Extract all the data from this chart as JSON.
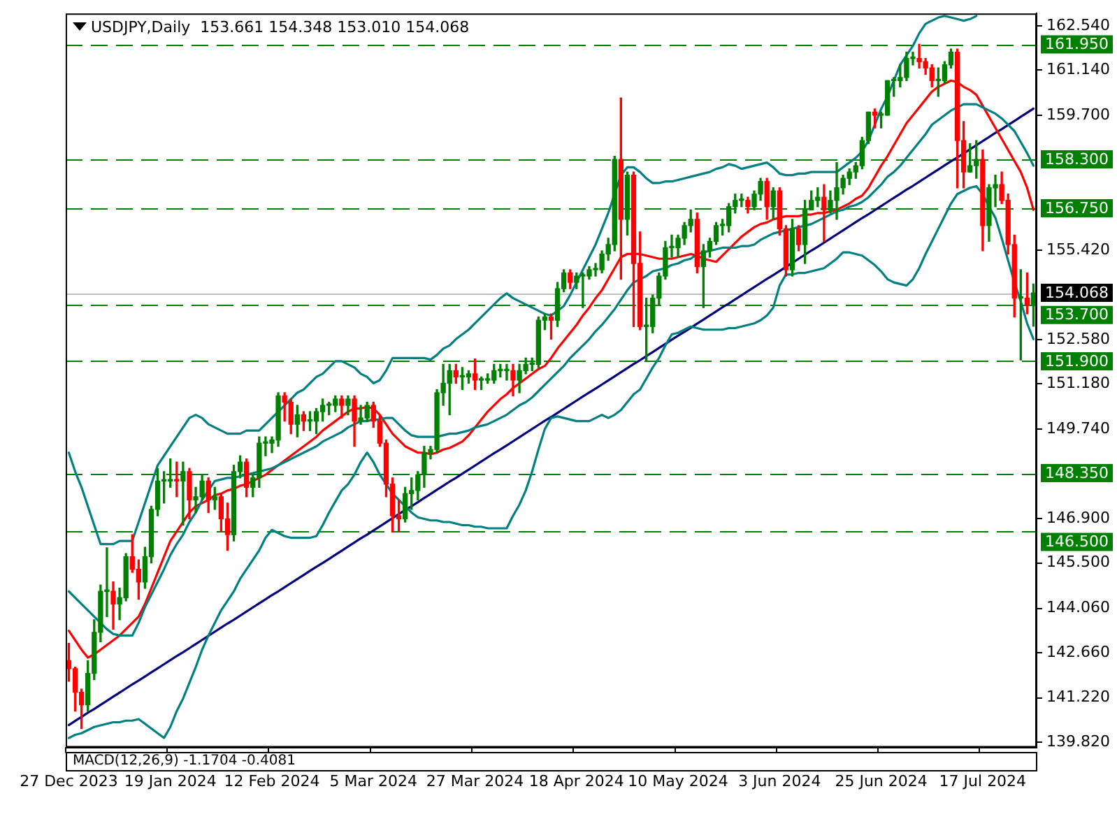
{
  "chart_data": {
    "type": "candlestick",
    "title": "USDJPY,Daily  153.661 154.348 153.010 154.068",
    "annotations": [
      "MACD(12,26,9) -1.1704 -0.4081"
    ],
    "categories": [
      "27 Dec 2023",
      null,
      null,
      null,
      null,
      null,
      null,
      null,
      null,
      null,
      null,
      null,
      null,
      null,
      null,
      null,
      "19 Jan 2024",
      null,
      null,
      null,
      null,
      null,
      null,
      null,
      null,
      null,
      null,
      null,
      null,
      null,
      null,
      null,
      "12 Feb 2024",
      null,
      null,
      null,
      null,
      null,
      null,
      null,
      null,
      null,
      null,
      null,
      null,
      null,
      null,
      null,
      "5 Mar 2024",
      null,
      null,
      null,
      null,
      null,
      null,
      null,
      null,
      null,
      null,
      null,
      null,
      null,
      null,
      null,
      "27 Mar 2024",
      null,
      null,
      null,
      null,
      null,
      null,
      null,
      null,
      null,
      null,
      null,
      null,
      null,
      null,
      null,
      "18 Apr 2024",
      null,
      null,
      null,
      null,
      null,
      null,
      null,
      null,
      null,
      null,
      null,
      null,
      null,
      null,
      null,
      "10 May 2024",
      null,
      null,
      null,
      null,
      null,
      null,
      null,
      null,
      null,
      null,
      null,
      null,
      null,
      null,
      null,
      "3 Jun 2024",
      null,
      null,
      null,
      null,
      null,
      null,
      null,
      null,
      null,
      null,
      null,
      null,
      null,
      null,
      null,
      "25 Jun 2024",
      null,
      null,
      null,
      null,
      null,
      null,
      null,
      null,
      null,
      null,
      null,
      null,
      null,
      null,
      null,
      "17 Jul 2024",
      null,
      null,
      null,
      null,
      null,
      null,
      null,
      null
    ],
    "ohlc": [
      [
        142.4,
        142.95,
        141.75,
        142.15
      ],
      [
        142.15,
        142.2,
        140.8,
        141.4
      ],
      [
        141.4,
        141.5,
        140.25,
        141.0
      ],
      [
        141.0,
        142.4,
        140.8,
        142.0
      ],
      [
        142.0,
        143.7,
        141.8,
        143.3
      ],
      [
        143.3,
        144.8,
        143.0,
        144.6
      ],
      [
        144.6,
        145.98,
        143.8,
        144.6
      ],
      [
        144.6,
        144.9,
        143.4,
        144.2
      ],
      [
        144.2,
        144.7,
        143.7,
        144.4
      ],
      [
        144.4,
        145.8,
        144.3,
        145.7
      ],
      [
        145.7,
        146.4,
        145.2,
        145.3
      ],
      [
        145.3,
        145.6,
        144.35,
        144.9
      ],
      [
        144.9,
        146.0,
        144.7,
        145.7
      ],
      [
        145.7,
        147.3,
        145.5,
        147.2
      ],
      [
        147.2,
        148.5,
        147.0,
        148.1
      ],
      [
        148.1,
        148.4,
        147.4,
        148.1
      ],
      [
        148.1,
        148.8,
        147.9,
        148.15
      ],
      [
        148.15,
        148.7,
        147.6,
        148.1
      ],
      [
        148.1,
        148.7,
        146.7,
        148.4
      ],
      [
        148.4,
        148.5,
        146.9,
        147.5
      ],
      [
        147.5,
        147.9,
        147.1,
        147.6
      ],
      [
        147.6,
        148.3,
        147.5,
        148.1
      ],
      [
        148.1,
        148.2,
        147.1,
        147.5
      ],
      [
        147.5,
        147.9,
        147.2,
        147.6
      ],
      [
        147.6,
        147.7,
        146.5,
        146.9
      ],
      [
        146.9,
        147.4,
        145.9,
        146.4
      ],
      [
        146.4,
        148.6,
        146.2,
        148.4
      ],
      [
        148.4,
        148.9,
        148.2,
        148.7
      ],
      [
        148.7,
        148.8,
        147.6,
        147.9
      ],
      [
        147.9,
        148.3,
        147.6,
        148.2
      ],
      [
        148.2,
        149.5,
        147.9,
        149.3
      ],
      [
        149.3,
        149.5,
        148.9,
        149.3
      ],
      [
        149.3,
        149.5,
        149.0,
        149.4
      ],
      [
        149.4,
        150.9,
        149.2,
        150.8
      ],
      [
        150.8,
        150.9,
        150.0,
        150.6
      ],
      [
        150.6,
        150.7,
        149.6,
        149.9
      ],
      [
        149.9,
        150.5,
        149.5,
        150.2
      ],
      [
        150.2,
        150.3,
        149.7,
        150.0
      ],
      [
        150.0,
        150.3,
        149.7,
        150.0
      ],
      [
        150.0,
        150.4,
        149.6,
        150.3
      ],
      [
        150.3,
        150.7,
        150.0,
        150.5
      ],
      [
        150.5,
        150.6,
        150.2,
        150.5
      ],
      [
        150.5,
        150.8,
        150.3,
        150.7
      ],
      [
        150.7,
        150.8,
        150.1,
        150.5
      ],
      [
        150.5,
        150.8,
        150.2,
        150.7
      ],
      [
        150.7,
        150.8,
        149.2,
        150.0
      ],
      [
        150.0,
        150.5,
        149.9,
        150.1
      ],
      [
        150.1,
        150.6,
        150.0,
        150.5
      ],
      [
        150.5,
        150.6,
        149.8,
        150.0
      ],
      [
        150.0,
        150.2,
        149.2,
        149.3
      ],
      [
        149.3,
        149.4,
        147.6,
        148.0
      ],
      [
        148.0,
        148.2,
        146.48,
        147.0
      ],
      [
        147.0,
        147.5,
        146.5,
        146.9
      ],
      [
        146.9,
        147.9,
        146.8,
        147.7
      ],
      [
        147.7,
        148.2,
        147.2,
        147.8
      ],
      [
        147.8,
        148.4,
        147.5,
        148.3
      ],
      [
        148.3,
        149.2,
        147.9,
        149.0
      ],
      [
        149.0,
        149.2,
        148.8,
        149.1
      ],
      [
        149.1,
        151.0,
        149.0,
        150.9
      ],
      [
        150.9,
        151.8,
        150.5,
        151.2
      ],
      [
        151.2,
        151.8,
        150.2,
        151.6
      ],
      [
        151.6,
        151.8,
        151.2,
        151.4
      ],
      [
        151.4,
        151.7,
        151.0,
        151.4
      ],
      [
        151.4,
        151.6,
        151.2,
        151.5
      ],
      [
        151.5,
        151.97,
        151.0,
        151.3
      ],
      [
        151.3,
        151.4,
        151.0,
        151.3
      ],
      [
        151.3,
        151.5,
        151.2,
        151.3
      ],
      [
        151.3,
        151.8,
        151.2,
        151.6
      ],
      [
        151.6,
        151.8,
        151.4,
        151.6
      ],
      [
        151.6,
        151.8,
        151.3,
        151.6
      ],
      [
        151.6,
        151.8,
        150.8,
        151.3
      ],
      [
        151.3,
        151.8,
        150.9,
        151.6
      ],
      [
        151.6,
        152.0,
        151.5,
        151.8
      ],
      [
        151.8,
        152.0,
        151.6,
        151.8
      ],
      [
        151.8,
        153.3,
        151.7,
        153.2
      ],
      [
        153.2,
        153.4,
        152.9,
        153.3
      ],
      [
        153.3,
        153.4,
        152.6,
        153.2
      ],
      [
        153.2,
        154.4,
        153.0,
        154.2
      ],
      [
        154.2,
        154.8,
        154.1,
        154.7
      ],
      [
        154.7,
        154.8,
        154.2,
        154.4
      ],
      [
        154.4,
        154.7,
        154.2,
        154.6
      ],
      [
        154.6,
        154.7,
        153.6,
        154.6
      ],
      [
        154.6,
        154.9,
        154.5,
        154.8
      ],
      [
        154.8,
        155.0,
        154.6,
        154.8
      ],
      [
        154.8,
        155.4,
        154.7,
        155.3
      ],
      [
        155.3,
        155.8,
        155.1,
        155.6
      ],
      [
        155.6,
        158.4,
        155.4,
        158.3
      ],
      [
        158.3,
        160.25,
        154.5,
        156.4
      ],
      [
        156.4,
        157.9,
        155.9,
        157.8
      ],
      [
        157.8,
        157.9,
        153.0,
        155.0
      ],
      [
        155.0,
        156.0,
        152.9,
        153.0
      ],
      [
        153.0,
        153.9,
        151.9,
        153.0
      ],
      [
        153.0,
        154.0,
        152.8,
        153.9
      ],
      [
        153.9,
        154.7,
        153.7,
        154.6
      ],
      [
        154.6,
        155.7,
        154.5,
        155.5
      ],
      [
        155.5,
        155.9,
        155.2,
        155.5
      ],
      [
        155.5,
        155.9,
        155.2,
        155.8
      ],
      [
        155.8,
        156.3,
        155.6,
        156.2
      ],
      [
        156.2,
        156.7,
        156.0,
        156.4
      ],
      [
        156.4,
        156.6,
        154.7,
        154.9
      ],
      [
        154.9,
        155.6,
        153.6,
        155.4
      ],
      [
        155.4,
        155.8,
        155.2,
        155.7
      ],
      [
        155.7,
        156.3,
        155.6,
        156.2
      ],
      [
        156.2,
        156.4,
        155.9,
        156.2
      ],
      [
        156.2,
        156.9,
        156.0,
        156.8
      ],
      [
        156.8,
        157.2,
        156.6,
        157.0
      ],
      [
        157.0,
        157.2,
        156.8,
        157.0
      ],
      [
        157.0,
        157.1,
        156.6,
        156.8
      ],
      [
        156.8,
        157.3,
        156.7,
        157.2
      ],
      [
        157.2,
        157.7,
        157.0,
        157.6
      ],
      [
        157.6,
        157.7,
        156.4,
        156.8
      ],
      [
        156.8,
        157.4,
        156.4,
        157.3
      ],
      [
        157.3,
        157.4,
        155.9,
        156.1
      ],
      [
        156.1,
        156.2,
        154.6,
        154.8
      ],
      [
        154.8,
        156.4,
        154.6,
        156.1
      ],
      [
        156.1,
        156.2,
        155.4,
        155.6
      ],
      [
        155.6,
        157.0,
        155.0,
        156.7
      ],
      [
        156.7,
        157.3,
        156.7,
        157.0
      ],
      [
        157.0,
        157.4,
        156.8,
        157.1
      ],
      [
        157.1,
        157.5,
        155.7,
        156.7
      ],
      [
        156.7,
        157.3,
        156.6,
        157.0
      ],
      [
        157.0,
        158.2,
        156.4,
        157.4
      ],
      [
        157.4,
        157.8,
        157.2,
        157.7
      ],
      [
        157.7,
        158.0,
        157.5,
        157.9
      ],
      [
        157.9,
        158.2,
        157.7,
        158.1
      ],
      [
        158.1,
        159.0,
        158.0,
        158.9
      ],
      [
        158.9,
        159.8,
        158.8,
        159.8
      ],
      [
        159.8,
        159.9,
        159.3,
        159.7
      ],
      [
        159.7,
        159.8,
        159.3,
        159.7
      ],
      [
        159.7,
        160.8,
        159.7,
        160.8
      ],
      [
        160.8,
        160.9,
        160.3,
        160.8
      ],
      [
        160.8,
        161.3,
        160.6,
        160.9
      ],
      [
        160.9,
        161.7,
        160.8,
        161.5
      ],
      [
        161.5,
        161.7,
        161.3,
        161.5
      ],
      [
        161.5,
        161.95,
        161.2,
        161.4
      ],
      [
        161.4,
        161.5,
        161.0,
        161.2
      ],
      [
        161.2,
        161.3,
        160.6,
        160.8
      ],
      [
        160.8,
        161.2,
        160.3,
        160.8
      ],
      [
        160.8,
        161.4,
        160.7,
        161.3
      ],
      [
        161.3,
        161.8,
        161.2,
        161.7
      ],
      [
        161.7,
        161.8,
        157.4,
        158.9
      ],
      [
        158.9,
        159.5,
        157.4,
        157.9
      ],
      [
        157.9,
        158.8,
        157.9,
        158.1
      ],
      [
        158.1,
        158.9,
        157.7,
        158.3
      ],
      [
        158.3,
        158.6,
        155.4,
        156.2
      ],
      [
        156.2,
        157.5,
        155.7,
        157.4
      ],
      [
        157.4,
        157.8,
        156.8,
        157.5
      ],
      [
        157.5,
        157.9,
        156.9,
        157.0
      ],
      [
        157.0,
        157.2,
        155.3,
        155.6
      ],
      [
        155.6,
        155.9,
        153.3,
        153.9
      ],
      [
        153.9,
        154.8,
        151.94,
        153.9
      ],
      [
        153.9,
        154.7,
        153.4,
        153.7
      ],
      [
        153.661,
        154.348,
        153.01,
        154.068
      ]
    ],
    "series": [
      {
        "type": "line",
        "color": "#008080",
        "values": [
          149.0,
          148.4,
          147.9,
          147.3,
          146.7,
          146.1,
          146.1,
          146.1,
          146.2,
          146.2,
          146.2,
          146.8,
          147.4,
          148.0,
          148.6,
          148.9,
          149.2,
          149.5,
          149.8,
          150.1,
          150.2,
          150.1,
          149.9,
          149.8,
          149.7,
          149.6,
          149.6,
          149.6,
          149.7,
          149.7,
          149.7,
          149.9,
          150.1,
          150.3,
          150.5,
          150.7,
          150.9,
          151.0,
          151.2,
          151.4,
          151.5,
          151.7,
          151.9,
          151.9,
          151.8,
          151.7,
          151.5,
          151.4,
          151.2,
          151.3,
          151.6,
          152.0,
          152.0,
          152.0,
          152.0,
          152.0,
          152.0,
          151.95,
          152.1,
          152.3,
          152.4,
          152.6,
          152.75,
          152.9,
          153.1,
          153.3,
          153.5,
          153.7,
          153.9,
          154.05,
          153.9,
          153.8,
          153.7,
          153.6,
          153.5,
          153.4,
          153.35,
          153.5,
          153.65,
          154.0,
          154.4,
          154.8,
          155.2,
          155.6,
          156.1,
          156.6,
          157.2,
          157.8,
          158.05,
          158.05,
          157.9,
          157.7,
          157.55,
          157.55,
          157.6,
          157.6,
          157.65,
          157.7,
          157.75,
          157.8,
          157.85,
          157.9,
          158.0,
          158.05,
          158.15,
          158.1,
          158.0,
          158.05,
          158.1,
          158.15,
          158.2,
          158.05,
          157.85,
          157.8,
          157.8,
          157.85,
          157.85,
          157.9,
          157.9,
          157.9,
          157.9,
          157.9,
          158.05,
          158.2,
          158.35,
          158.55,
          158.9,
          159.4,
          159.9,
          160.3,
          160.8,
          161.3,
          161.6,
          161.9,
          162.3,
          162.6,
          162.7,
          162.8,
          162.85,
          162.8,
          162.75,
          162.7,
          162.75,
          162.85,
          null,
          null,
          null,
          null,
          null,
          null,
          null,
          null,
          null
        ]
      },
      {
        "type": "line",
        "color": "#008080",
        "values": [
          144.6,
          144.4,
          144.2,
          144.0,
          143.8,
          143.6,
          143.4,
          143.25,
          143.2,
          143.2,
          143.2,
          143.6,
          144.1,
          144.5,
          144.9,
          145.3,
          145.75,
          146.1,
          146.4,
          146.8,
          147.1,
          147.5,
          147.8,
          148.1,
          148.15,
          148.2,
          148.2,
          148.25,
          148.3,
          148.35,
          148.4,
          148.45,
          148.5,
          148.6,
          148.7,
          148.8,
          148.9,
          149.0,
          149.1,
          149.2,
          149.35,
          149.45,
          149.55,
          149.65,
          149.8,
          149.9,
          150.0,
          150.0,
          150.05,
          150.05,
          150.1,
          150.1,
          149.9,
          149.7,
          149.55,
          149.5,
          149.5,
          149.5,
          149.5,
          149.55,
          149.6,
          149.6,
          149.65,
          149.7,
          149.8,
          149.85,
          149.9,
          150.0,
          150.1,
          150.2,
          150.35,
          150.5,
          150.6,
          150.75,
          150.95,
          151.15,
          151.35,
          151.55,
          151.75,
          152.0,
          152.2,
          152.4,
          152.6,
          152.85,
          153.05,
          153.3,
          153.55,
          153.85,
          154.15,
          154.4,
          154.5,
          154.6,
          154.75,
          154.8,
          154.85,
          154.95,
          155.0,
          155.1,
          155.15,
          155.3,
          155.35,
          155.4,
          155.45,
          155.5,
          155.5,
          155.5,
          155.55,
          155.55,
          155.6,
          155.75,
          155.85,
          155.95,
          156.0,
          156.05,
          156.1,
          156.15,
          156.2,
          156.25,
          156.35,
          156.45,
          156.55,
          156.65,
          156.7,
          156.8,
          156.85,
          156.95,
          157.1,
          157.3,
          157.5,
          157.75,
          157.9,
          158.1,
          158.35,
          158.6,
          158.85,
          159.1,
          159.4,
          159.55,
          159.7,
          159.85,
          159.95,
          160.05,
          160.05,
          160.05,
          159.95,
          159.85,
          159.75,
          159.6,
          159.4,
          159.2,
          158.85,
          158.5,
          158.1
        ]
      },
      {
        "type": "line",
        "color": "#008080",
        "values": [
          139.95,
          140.05,
          140.1,
          140.2,
          140.3,
          140.35,
          140.4,
          140.45,
          140.45,
          140.5,
          140.5,
          140.55,
          140.4,
          140.25,
          140.1,
          139.95,
          140.3,
          140.8,
          141.2,
          141.7,
          142.2,
          142.75,
          143.2,
          143.6,
          144.0,
          144.3,
          144.6,
          145.0,
          145.3,
          145.6,
          145.9,
          146.3,
          146.55,
          146.45,
          146.35,
          146.3,
          146.3,
          146.3,
          146.3,
          146.35,
          146.7,
          147.1,
          147.45,
          147.8,
          148.0,
          148.3,
          148.7,
          149.0,
          148.7,
          148.3,
          148.0,
          147.7,
          147.5,
          147.3,
          147.1,
          146.95,
          146.9,
          146.85,
          146.85,
          146.8,
          146.8,
          146.75,
          146.7,
          146.7,
          146.65,
          146.65,
          146.6,
          146.6,
          146.6,
          146.6,
          147.0,
          147.35,
          147.8,
          148.4,
          149.1,
          149.75,
          150.1,
          150.15,
          150.1,
          150.05,
          150.0,
          150.0,
          150.0,
          150.1,
          150.2,
          150.1,
          150.2,
          150.35,
          150.6,
          150.85,
          151.0,
          151.35,
          151.7,
          152.0,
          152.4,
          152.75,
          152.8,
          152.9,
          153.0,
          152.95,
          152.9,
          152.9,
          152.9,
          152.9,
          152.95,
          152.95,
          153.0,
          153.05,
          153.1,
          153.2,
          153.35,
          153.6,
          154.3,
          154.65,
          154.65,
          154.7,
          154.7,
          154.75,
          154.8,
          154.85,
          155.0,
          155.15,
          155.35,
          155.35,
          155.3,
          155.25,
          155.1,
          154.95,
          154.75,
          154.5,
          154.4,
          154.35,
          154.3,
          154.5,
          154.85,
          155.3,
          155.7,
          156.1,
          156.5,
          156.9,
          157.2,
          157.3,
          157.4,
          157.45,
          157.2,
          156.8,
          156.45,
          155.8,
          155.1,
          154.4,
          153.8,
          153.1,
          152.6
        ]
      },
      {
        "type": "line",
        "color": "#ff0000",
        "values": [
          143.35,
          143.05,
          142.75,
          142.5,
          142.6,
          142.75,
          142.9,
          143.05,
          143.2,
          143.4,
          143.6,
          143.8,
          144.2,
          144.7,
          145.2,
          145.7,
          146.2,
          146.5,
          146.8,
          147.1,
          147.3,
          147.4,
          147.5,
          147.65,
          147.7,
          147.8,
          147.85,
          147.95,
          148.0,
          148.1,
          148.2,
          148.3,
          148.45,
          148.6,
          148.75,
          148.9,
          149.05,
          149.2,
          149.35,
          149.5,
          149.7,
          149.85,
          150.0,
          150.15,
          150.3,
          150.4,
          150.4,
          150.45,
          150.4,
          150.2,
          149.9,
          149.6,
          149.4,
          149.2,
          149.1,
          149.0,
          149.0,
          148.95,
          149.0,
          149.1,
          149.15,
          149.25,
          149.35,
          149.55,
          149.8,
          150.05,
          150.3,
          150.5,
          150.7,
          150.85,
          151.05,
          151.2,
          151.35,
          151.5,
          151.65,
          151.75,
          152.0,
          152.3,
          152.55,
          152.8,
          153.05,
          153.35,
          153.6,
          153.9,
          154.15,
          154.5,
          154.85,
          155.2,
          155.3,
          155.3,
          155.3,
          155.25,
          155.2,
          155.15,
          155.15,
          155.15,
          155.2,
          155.25,
          155.3,
          155.25,
          155.15,
          155.1,
          155.05,
          155.25,
          155.45,
          155.65,
          155.85,
          156.0,
          156.15,
          156.25,
          156.3,
          156.4,
          156.45,
          156.5,
          156.5,
          156.5,
          156.55,
          156.55,
          156.6,
          156.6,
          156.65,
          156.7,
          156.8,
          156.9,
          157.05,
          157.15,
          157.4,
          157.75,
          158.1,
          158.4,
          158.75,
          159.1,
          159.45,
          159.7,
          159.95,
          160.2,
          160.45,
          160.6,
          160.7,
          160.8,
          160.75,
          160.6,
          160.5,
          160.35,
          160.0,
          159.65,
          159.3,
          158.95,
          158.6,
          158.25,
          157.9,
          157.4,
          156.7
        ]
      },
      {
        "type": "line",
        "color": "#000080",
        "values": [
          140.36,
          140.49,
          140.62,
          140.75,
          140.87,
          141.0,
          141.13,
          141.26,
          141.39,
          141.52,
          141.65,
          141.77,
          141.9,
          142.03,
          142.16,
          142.29,
          142.42,
          142.55,
          142.67,
          142.8,
          142.93,
          143.06,
          143.19,
          143.32,
          143.45,
          143.58,
          143.7,
          143.83,
          143.96,
          144.09,
          144.22,
          144.35,
          144.48,
          144.6,
          144.73,
          144.86,
          144.99,
          145.12,
          145.25,
          145.38,
          145.5,
          145.63,
          145.76,
          145.89,
          146.02,
          146.15,
          146.28,
          146.4,
          146.53,
          146.66,
          146.79,
          146.92,
          147.05,
          147.18,
          147.3,
          147.43,
          147.56,
          147.69,
          147.82,
          147.95,
          148.08,
          148.2,
          148.33,
          148.46,
          148.59,
          148.72,
          148.85,
          148.98,
          149.1,
          149.23,
          149.36,
          149.49,
          149.62,
          149.75,
          149.88,
          150.01,
          150.13,
          150.26,
          150.39,
          150.52,
          150.65,
          150.78,
          150.91,
          151.03,
          151.16,
          151.29,
          151.42,
          151.55,
          151.68,
          151.81,
          151.93,
          152.06,
          152.19,
          152.32,
          152.45,
          152.58,
          152.71,
          152.83,
          152.96,
          153.09,
          153.22,
          153.35,
          153.48,
          153.61,
          153.73,
          153.86,
          153.99,
          154.12,
          154.25,
          154.38,
          154.51,
          154.63,
          154.76,
          154.89,
          155.02,
          155.15,
          155.28,
          155.41,
          155.53,
          155.66,
          155.79,
          155.92,
          156.05,
          156.18,
          156.31,
          156.44,
          156.56,
          156.69,
          156.82,
          156.95,
          157.08,
          157.21,
          157.34,
          157.46,
          157.59,
          157.72,
          157.85,
          157.98,
          158.11,
          158.24,
          158.36,
          158.49,
          158.62,
          158.75,
          158.88,
          159.01,
          159.14,
          159.26,
          159.39,
          159.52,
          159.65,
          159.78,
          159.91
        ]
      }
    ],
    "ylim": [
      139.65,
      162.93
    ],
    "yticks": [
      {
        "value": 162.54,
        "label": "162.540"
      },
      {
        "value": 161.14,
        "label": "161.140"
      },
      {
        "value": 159.7,
        "label": "159.700"
      },
      {
        "value": 155.42,
        "label": "155.420"
      },
      {
        "value": 152.58,
        "label": "152.580"
      },
      {
        "value": 151.18,
        "label": "151.180"
      },
      {
        "value": 149.74,
        "label": "149.740"
      },
      {
        "value": 146.9,
        "label": "146.900"
      },
      {
        "value": 145.5,
        "label": "145.500"
      },
      {
        "value": 144.06,
        "label": "144.060"
      },
      {
        "value": 142.66,
        "label": "142.660"
      },
      {
        "value": 141.22,
        "label": "141.220"
      },
      {
        "value": 139.82,
        "label": "139.820"
      }
    ],
    "ref_lines": [
      {
        "axis": "y",
        "value": 161.95,
        "label": "161.950",
        "color": "#008000",
        "line_style": "dashed"
      },
      {
        "axis": "y",
        "value": 158.3,
        "label": "158.300",
        "color": "#008000",
        "line_style": "dashed"
      },
      {
        "axis": "y",
        "value": 156.75,
        "label": "156.750",
        "color": "#008000",
        "line_style": "dashed"
      },
      {
        "axis": "y",
        "value": 154.068,
        "label": "154.068",
        "color": "#c0c0c0",
        "line_style": "solid"
      },
      {
        "axis": "y",
        "value": 153.7,
        "label": "153.700",
        "color": "#008000",
        "line_style": "dashed"
      },
      {
        "axis": "y",
        "value": 151.9,
        "label": "151.900",
        "color": "#008000",
        "line_style": "dashed"
      },
      {
        "axis": "y",
        "value": 148.35,
        "label": "148.350",
        "color": "#008000",
        "line_style": "dashed"
      },
      {
        "axis": "y",
        "value": 146.5,
        "label": "146.500",
        "color": "#008000",
        "line_style": "dashed"
      }
    ]
  }
}
